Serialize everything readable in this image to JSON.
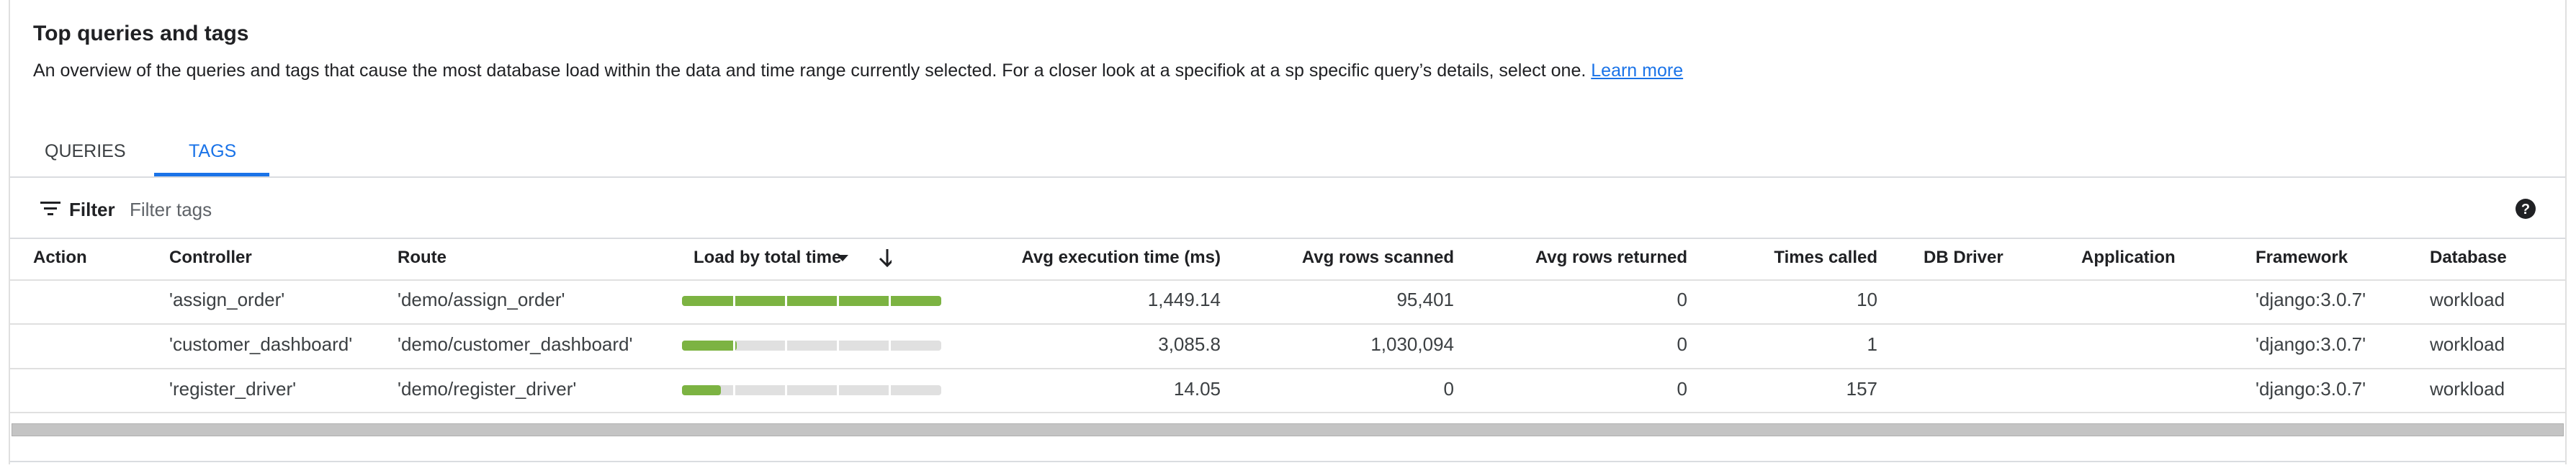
{
  "header": {
    "title": "Top queries and tags",
    "description": "An overview of the queries and tags that cause the most database load within the data and time range currently selected. For a closer look at a specifiok at a sp specific query’s details, select one.",
    "link": "Learn more"
  },
  "tabs": [
    "QUERIES",
    "TAGS"
  ],
  "active_tab": 1,
  "filter": {
    "label": "Filter",
    "placeholder": "Filter tags"
  },
  "table": {
    "columns": [
      "Action",
      "Controller",
      "Route",
      "Load by total time",
      "Avg execution time (ms)",
      "Avg rows scanned",
      "Avg rows returned",
      "Times called",
      "DB Driver",
      "Application",
      "Framework",
      "Database"
    ],
    "rows": [
      [
        null,
        "'assign_order'",
        "'demo/assign_order'",
        100,
        "1,449.14",
        "95,401",
        "0",
        "10",
        null,
        null,
        "'django:3.0.7'",
        "workload"
      ],
      [
        null,
        "'customer_dashboard'",
        "'demo/customer_dashboard'",
        21,
        "3,085.8",
        "1,030,094",
        "0",
        "1",
        null,
        null,
        "'django:3.0.7'",
        "workload"
      ],
      [
        null,
        "'register_driver'",
        "'demo/register_driver'",
        15,
        "14.05",
        "0",
        "0",
        "157",
        null,
        null,
        "'django:3.0.7'",
        "workload"
      ]
    ]
  }
}
